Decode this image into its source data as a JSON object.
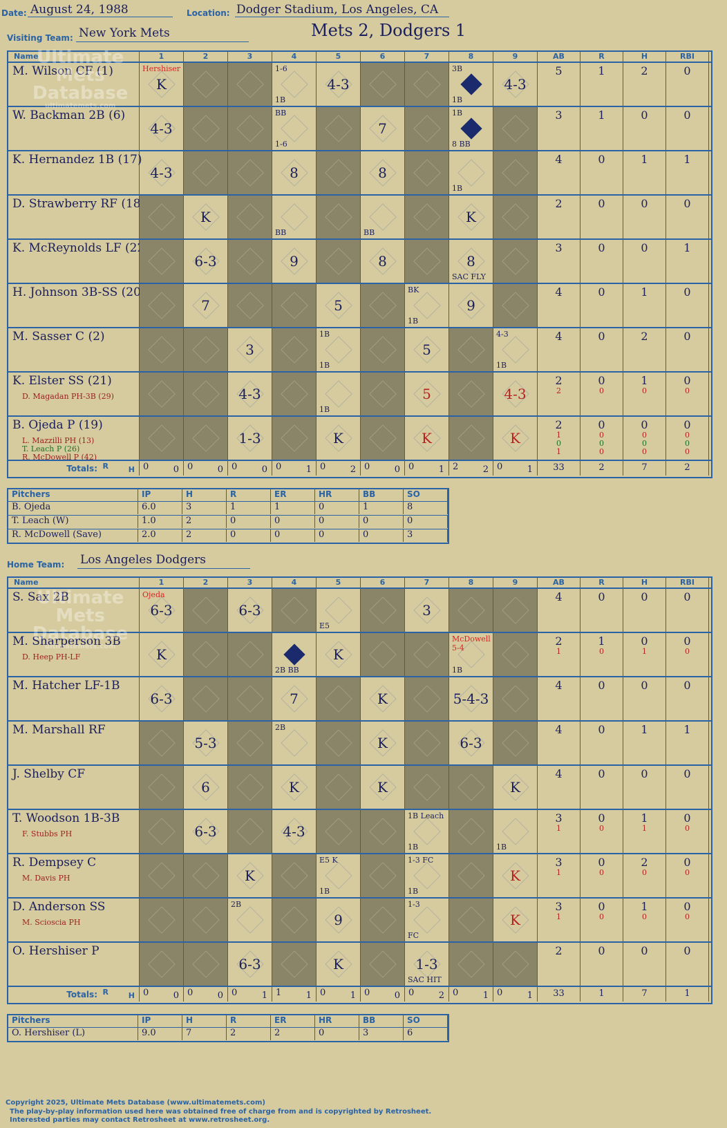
{
  "header": {
    "date_label": "Date:",
    "date": "August 24, 1988",
    "location_label": "Location:",
    "location": "Dodger Stadium, Los Angeles, CA",
    "result": "Mets 2, Dodgers 1"
  },
  "visitors": {
    "team_label": "Visiting Team:",
    "team": "New York Mets",
    "columns": [
      "Name",
      "1",
      "2",
      "3",
      "4",
      "5",
      "6",
      "7",
      "8",
      "9",
      "AB",
      "R",
      "H",
      "RBI"
    ],
    "rows": [
      {
        "name": "M. Wilson CF (1)",
        "subs": [],
        "stats": [
          [
            "5"
          ],
          [
            "1"
          ],
          [
            "2"
          ],
          [
            "0"
          ]
        ]
      },
      {
        "name": "W. Backman 2B (6)",
        "subs": [],
        "stats": [
          [
            "3"
          ],
          [
            "1"
          ],
          [
            "0"
          ],
          [
            "0"
          ]
        ]
      },
      {
        "name": "K. Hernandez 1B (17)",
        "subs": [],
        "stats": [
          [
            "4"
          ],
          [
            "0"
          ],
          [
            "1"
          ],
          [
            "1"
          ]
        ]
      },
      {
        "name": "D. Strawberry RF (18)",
        "subs": [],
        "stats": [
          [
            "2"
          ],
          [
            "0"
          ],
          [
            "0"
          ],
          [
            "0"
          ]
        ]
      },
      {
        "name": "K. McReynolds LF (22)",
        "subs": [],
        "stats": [
          [
            "3"
          ],
          [
            "0"
          ],
          [
            "0"
          ],
          [
            "1"
          ]
        ]
      },
      {
        "name": "H. Johnson 3B-SS (20)",
        "subs": [],
        "stats": [
          [
            "4"
          ],
          [
            "0"
          ],
          [
            "1"
          ],
          [
            "0"
          ]
        ]
      },
      {
        "name": "M. Sasser C (2)",
        "subs": [],
        "stats": [
          [
            "4"
          ],
          [
            "0"
          ],
          [
            "2"
          ],
          [
            "0"
          ]
        ]
      },
      {
        "name": "K. Elster SS (21)",
        "subs": [
          "D. Magadan PH-3B (29)"
        ],
        "stats": [
          [
            "2",
            "2"
          ],
          [
            "0",
            "0"
          ],
          [
            "1",
            "0"
          ],
          [
            "0",
            "0"
          ]
        ]
      },
      {
        "name": "B. Ojeda P (19)",
        "subs": [
          "L. Mazzilli PH (13)",
          "T. Leach P (26)",
          "R. McDowell P (42)"
        ],
        "stats": [
          [
            "2",
            "1",
            "0",
            "1"
          ],
          [
            "0",
            "0",
            "0",
            "0"
          ],
          [
            "0",
            "0",
            "0",
            "0"
          ],
          [
            "0",
            "0",
            "0",
            "0"
          ]
        ]
      }
    ],
    "plays": [
      [
        {
          "t": "K",
          "n": "Hershiser",
          "nr": 1
        },
        {
          "d": 1
        },
        {
          "d": 1
        },
        {
          "t": "",
          "n": "1-6",
          "n2": "1B"
        },
        {
          "t": "4-3"
        },
        {
          "d": 1
        },
        {
          "d": 1
        },
        {
          "t": "",
          "s": 1,
          "n": "3B",
          "n2": "1B"
        },
        {
          "t": "4-3"
        }
      ],
      [
        {
          "t": "4-3"
        },
        {
          "d": 1
        },
        {
          "d": 1
        },
        {
          "t": "",
          "n": "BB",
          "n2": "1-6"
        },
        {
          "d": 1
        },
        {
          "t": "7"
        },
        {
          "d": 1
        },
        {
          "t": "",
          "s": 1,
          "n": "1B",
          "n2": "8 BB"
        },
        {
          "d": 1
        }
      ],
      [
        {
          "t": "4-3"
        },
        {
          "d": 1
        },
        {
          "d": 1
        },
        {
          "t": "8"
        },
        {
          "d": 1
        },
        {
          "t": "8"
        },
        {
          "d": 1
        },
        {
          "t": "",
          "n2": "1B"
        },
        {
          "d": 1
        }
      ],
      [
        {
          "d": 1
        },
        {
          "t": "K"
        },
        {
          "d": 1
        },
        {
          "t": "",
          "n2": "BB"
        },
        {
          "d": 1
        },
        {
          "t": "",
          "n2": "BB"
        },
        {
          "d": 1
        },
        {
          "t": "K"
        },
        {
          "d": 1
        }
      ],
      [
        {
          "d": 1
        },
        {
          "t": "6-3"
        },
        {
          "d": 1
        },
        {
          "t": "9"
        },
        {
          "d": 1
        },
        {
          "t": "8"
        },
        {
          "d": 1
        },
        {
          "t": "8",
          "n2": "SAC FLY"
        },
        {
          "d": 1
        }
      ],
      [
        {
          "d": 1
        },
        {
          "t": "7"
        },
        {
          "d": 1
        },
        {
          "d": 1
        },
        {
          "t": "5"
        },
        {
          "d": 1
        },
        {
          "t": "",
          "n": "BK",
          "n2": "1B"
        },
        {
          "t": "9"
        },
        {
          "d": 1
        }
      ],
      [
        {
          "d": 1
        },
        {
          "d": 1
        },
        {
          "t": "3"
        },
        {
          "d": 1
        },
        {
          "t": "",
          "n": "1B",
          "n2": "1B"
        },
        {
          "d": 1
        },
        {
          "t": "5"
        },
        {
          "d": 1
        },
        {
          "t": "",
          "n": "4-3",
          "n2": "1B"
        }
      ],
      [
        {
          "d": 1
        },
        {
          "d": 1
        },
        {
          "t": "4-3"
        },
        {
          "d": 1
        },
        {
          "t": "",
          "n2": "1B"
        },
        {
          "d": 1
        },
        {
          "t": "5",
          "r": 1
        },
        {
          "d": 1
        },
        {
          "t": "4-3",
          "r": 1
        }
      ],
      [
        {
          "d": 1
        },
        {
          "d": 1
        },
        {
          "t": "1-3"
        },
        {
          "d": 1
        },
        {
          "t": "K"
        },
        {
          "d": 1
        },
        {
          "t": "K",
          "r": 1
        },
        {
          "d": 1
        },
        {
          "t": "K",
          "r": 1
        }
      ]
    ],
    "totals_label": "Totals:",
    "rh_r": "R",
    "rh_h": "H",
    "totals": [
      [
        "0",
        "0"
      ],
      [
        "0",
        "0"
      ],
      [
        "0",
        "0"
      ],
      [
        "0",
        "1"
      ],
      [
        "0",
        "2"
      ],
      [
        "0",
        "0"
      ],
      [
        "0",
        "1"
      ],
      [
        "2",
        "2"
      ],
      [
        "0",
        "1"
      ]
    ],
    "team_totals": [
      "33",
      "2",
      "7",
      "2"
    ],
    "pitchers_cols": [
      "Pitchers",
      "IP",
      "H",
      "R",
      "ER",
      "HR",
      "BB",
      "SO"
    ],
    "pitchers": [
      [
        "B. Ojeda",
        "6.0",
        "3",
        "1",
        "1",
        "0",
        "1",
        "8"
      ],
      [
        "T. Leach (W)",
        "1.0",
        "2",
        "0",
        "0",
        "0",
        "0",
        "0"
      ],
      [
        "R. McDowell (Save)",
        "2.0",
        "2",
        "0",
        "0",
        "0",
        "0",
        "3"
      ]
    ]
  },
  "home": {
    "team_label": "Home Team:",
    "team": "Los Angeles Dodgers",
    "columns": [
      "Name",
      "1",
      "2",
      "3",
      "4",
      "5",
      "6",
      "7",
      "8",
      "9",
      "AB",
      "R",
      "H",
      "RBI"
    ],
    "rows": [
      {
        "name": "S. Sax 2B",
        "subs": [],
        "stats": [
          [
            "4"
          ],
          [
            "0"
          ],
          [
            "0"
          ],
          [
            "0"
          ]
        ]
      },
      {
        "name": "M. Sharperson 3B",
        "subs": [
          "D. Heep PH-LF"
        ],
        "stats": [
          [
            "2",
            "1"
          ],
          [
            "1",
            "0"
          ],
          [
            "0",
            "1"
          ],
          [
            "0",
            "0"
          ]
        ]
      },
      {
        "name": "M. Hatcher LF-1B",
        "subs": [],
        "stats": [
          [
            "4"
          ],
          [
            "0"
          ],
          [
            "0"
          ],
          [
            "0"
          ]
        ]
      },
      {
        "name": "M. Marshall RF",
        "subs": [],
        "stats": [
          [
            "4"
          ],
          [
            "0"
          ],
          [
            "1"
          ],
          [
            "1"
          ]
        ]
      },
      {
        "name": "J. Shelby CF",
        "subs": [],
        "stats": [
          [
            "4"
          ],
          [
            "0"
          ],
          [
            "0"
          ],
          [
            "0"
          ]
        ]
      },
      {
        "name": "T. Woodson 1B-3B",
        "subs": [
          "F. Stubbs PH"
        ],
        "stats": [
          [
            "3",
            "1"
          ],
          [
            "0",
            "0"
          ],
          [
            "1",
            "1"
          ],
          [
            "0",
            "0"
          ]
        ]
      },
      {
        "name": "R. Dempsey C",
        "subs": [
          "M. Davis PH"
        ],
        "stats": [
          [
            "3",
            "1"
          ],
          [
            "0",
            "0"
          ],
          [
            "2",
            "0"
          ],
          [
            "0",
            "0"
          ]
        ]
      },
      {
        "name": "D. Anderson SS",
        "subs": [
          "M. Scioscia PH"
        ],
        "stats": [
          [
            "3",
            "1"
          ],
          [
            "0",
            "0"
          ],
          [
            "1",
            "0"
          ],
          [
            "0",
            "0"
          ]
        ]
      },
      {
        "name": "O. Hershiser P",
        "subs": [],
        "stats": [
          [
            "2"
          ],
          [
            "0"
          ],
          [
            "0"
          ],
          [
            "0"
          ]
        ]
      }
    ],
    "plays": [
      [
        {
          "t": "6-3",
          "n": "Ojeda",
          "nr": 1
        },
        {
          "d": 1
        },
        {
          "t": "6-3"
        },
        {
          "d": 1
        },
        {
          "t": "",
          "n2": "E5"
        },
        {
          "d": 1
        },
        {
          "t": "3"
        },
        {
          "d": 1
        },
        {
          "d": 1
        }
      ],
      [
        {
          "t": "K"
        },
        {
          "d": 1
        },
        {
          "d": 1
        },
        {
          "t": "",
          "s": 1,
          "n2": "2B BB"
        },
        {
          "t": "K"
        },
        {
          "d": 1
        },
        {
          "d": 1
        },
        {
          "t": "",
          "n": "McDowell 5-4",
          "nr": 1,
          "n2": "1B"
        },
        {
          "d": 1
        }
      ],
      [
        {
          "t": "6-3"
        },
        {
          "d": 1
        },
        {
          "d": 1
        },
        {
          "t": "7"
        },
        {
          "d": 1
        },
        {
          "t": "K"
        },
        {
          "d": 1
        },
        {
          "t": "5-4-3"
        },
        {
          "d": 1
        }
      ],
      [
        {
          "d": 1
        },
        {
          "t": "5-3"
        },
        {
          "d": 1
        },
        {
          "t": "",
          "n": "2B"
        },
        {
          "d": 1
        },
        {
          "t": "K"
        },
        {
          "d": 1
        },
        {
          "t": "6-3"
        },
        {
          "d": 1
        }
      ],
      [
        {
          "d": 1
        },
        {
          "t": "6"
        },
        {
          "d": 1
        },
        {
          "t": "K"
        },
        {
          "d": 1
        },
        {
          "t": "K"
        },
        {
          "d": 1
        },
        {
          "d": 1
        },
        {
          "t": "K"
        }
      ],
      [
        {
          "d": 1
        },
        {
          "t": "6-3"
        },
        {
          "d": 1
        },
        {
          "t": "4-3"
        },
        {
          "d": 1
        },
        {
          "d": 1
        },
        {
          "t": "",
          "n": "1B Leach",
          "n2": "1B"
        },
        {
          "d": 1
        },
        {
          "t": "",
          "n2": "1B"
        }
      ],
      [
        {
          "d": 1
        },
        {
          "d": 1
        },
        {
          "t": "K"
        },
        {
          "d": 1
        },
        {
          "t": "",
          "n": "E5 K",
          "n2": "1B"
        },
        {
          "d": 1
        },
        {
          "t": "",
          "n": "1-3 FC",
          "n2": "1B"
        },
        {
          "d": 1
        },
        {
          "t": "K",
          "r": 1
        }
      ],
      [
        {
          "d": 1
        },
        {
          "d": 1
        },
        {
          "t": "",
          "n": "2B"
        },
        {
          "d": 1
        },
        {
          "t": "9"
        },
        {
          "d": 1
        },
        {
          "t": "",
          "n": "1-3",
          "n2": "FC"
        },
        {
          "d": 1
        },
        {
          "t": "K",
          "r": 1
        }
      ],
      [
        {
          "d": 1
        },
        {
          "d": 1
        },
        {
          "t": "6-3"
        },
        {
          "d": 1
        },
        {
          "t": "K"
        },
        {
          "d": 1
        },
        {
          "t": "1-3",
          "n2": "SAC HIT"
        },
        {
          "d": 1
        },
        {
          "d": 1
        }
      ]
    ],
    "totals_label": "Totals:",
    "rh_r": "R",
    "rh_h": "H",
    "totals": [
      [
        "0",
        "0"
      ],
      [
        "0",
        "0"
      ],
      [
        "0",
        "1"
      ],
      [
        "1",
        "1"
      ],
      [
        "0",
        "1"
      ],
      [
        "0",
        "0"
      ],
      [
        "0",
        "2"
      ],
      [
        "0",
        "1"
      ],
      [
        "0",
        "1"
      ]
    ],
    "team_totals": [
      "33",
      "1",
      "7",
      "1"
    ],
    "pitchers_cols": [
      "Pitchers",
      "IP",
      "H",
      "R",
      "ER",
      "HR",
      "BB",
      "SO"
    ],
    "pitchers": [
      [
        "O. Hershiser (L)",
        "9.0",
        "7",
        "2",
        "2",
        "0",
        "3",
        "6"
      ]
    ]
  },
  "watermark": {
    "line1": "Ultimate",
    "line2": "Mets",
    "line3": "Database",
    "url": "ultimatemets.com"
  },
  "footer": {
    "line1": "Copyright 2025, Ultimate Mets Database (www.ultimatemets.com)",
    "line2": "The play-by-play information used here was obtained free of charge from and is copyrighted by Retrosheet.",
    "line3": "Interested parties may contact Retrosheet at www.retrosheet.org."
  }
}
